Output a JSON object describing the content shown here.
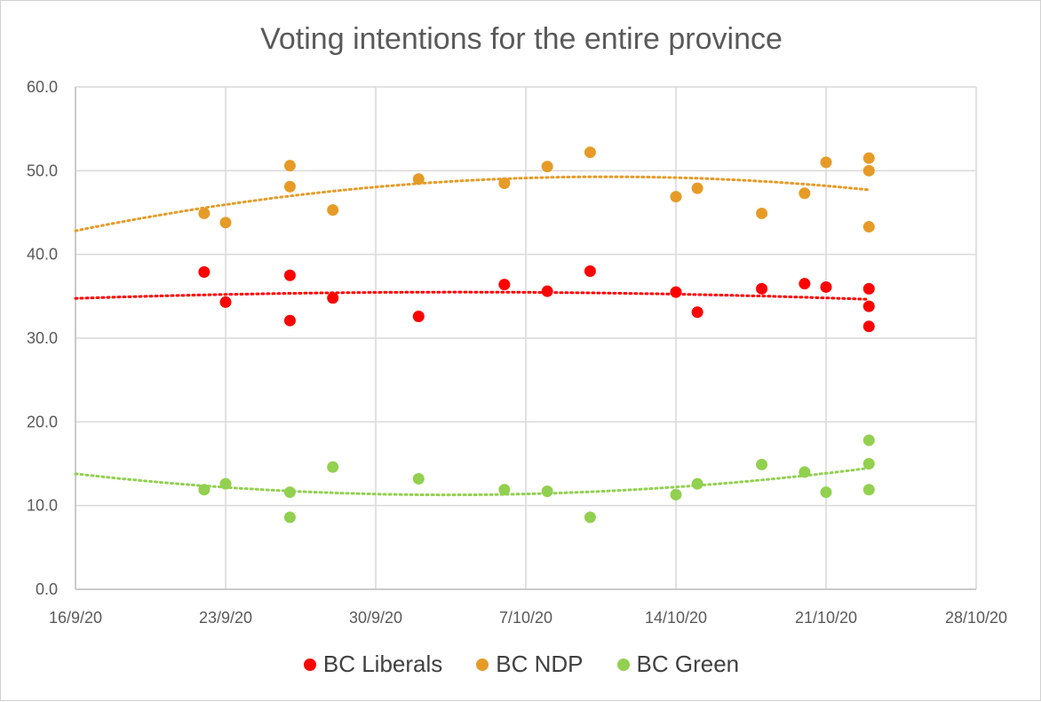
{
  "chart_data": {
    "type": "scatter",
    "title": "Voting intentions for the entire province",
    "x_axis": {
      "type": "date",
      "min": "2020-09-16",
      "max": "2020-10-28",
      "ticks": [
        "2020-09-16",
        "2020-09-23",
        "2020-09-30",
        "2020-10-07",
        "2020-10-14",
        "2020-10-21",
        "2020-10-28"
      ],
      "tick_labels": [
        "16/9/20",
        "23/9/20",
        "30/9/20",
        "7/10/20",
        "14/10/20",
        "21/10/20",
        "28/10/20"
      ]
    },
    "y_axis": {
      "min": 0,
      "max": 60,
      "ticks": [
        0,
        10,
        20,
        30,
        40,
        50,
        60
      ],
      "tick_labels": [
        "0.0",
        "10.0",
        "20.0",
        "30.0",
        "40.0",
        "50.0",
        "60.0"
      ]
    },
    "grid": {
      "vertical": true,
      "horizontal": true
    },
    "legend": {
      "position": "bottom"
    },
    "series": [
      {
        "name": "BC Liberals",
        "color": "#ff0000",
        "trendline": "dotted polynomial",
        "points": [
          {
            "x": "2020-09-22",
            "y": 37.9
          },
          {
            "x": "2020-09-23",
            "y": 34.3
          },
          {
            "x": "2020-09-26",
            "y": 37.5
          },
          {
            "x": "2020-09-26",
            "y": 32.1
          },
          {
            "x": "2020-09-28",
            "y": 34.8
          },
          {
            "x": "2020-10-02",
            "y": 32.6
          },
          {
            "x": "2020-10-06",
            "y": 36.4
          },
          {
            "x": "2020-10-08",
            "y": 35.6
          },
          {
            "x": "2020-10-10",
            "y": 38.0
          },
          {
            "x": "2020-10-14",
            "y": 35.5
          },
          {
            "x": "2020-10-15",
            "y": 33.1
          },
          {
            "x": "2020-10-18",
            "y": 35.9
          },
          {
            "x": "2020-10-20",
            "y": 36.5
          },
          {
            "x": "2020-10-21",
            "y": 36.1
          },
          {
            "x": "2020-10-23",
            "y": 35.9
          },
          {
            "x": "2020-10-23",
            "y": 33.8
          },
          {
            "x": "2020-10-23",
            "y": 31.4
          }
        ]
      },
      {
        "name": "BC NDP",
        "color": "#e69b27",
        "trendline": "dotted polynomial",
        "points": [
          {
            "x": "2020-09-22",
            "y": 44.9
          },
          {
            "x": "2020-09-23",
            "y": 43.8
          },
          {
            "x": "2020-09-26",
            "y": 50.6
          },
          {
            "x": "2020-09-26",
            "y": 48.1
          },
          {
            "x": "2020-09-28",
            "y": 45.3
          },
          {
            "x": "2020-10-02",
            "y": 49.0
          },
          {
            "x": "2020-10-06",
            "y": 48.5
          },
          {
            "x": "2020-10-08",
            "y": 50.5
          },
          {
            "x": "2020-10-10",
            "y": 52.2
          },
          {
            "x": "2020-10-14",
            "y": 46.9
          },
          {
            "x": "2020-10-15",
            "y": 47.9
          },
          {
            "x": "2020-10-18",
            "y": 44.9
          },
          {
            "x": "2020-10-20",
            "y": 47.3
          },
          {
            "x": "2020-10-21",
            "y": 51.0
          },
          {
            "x": "2020-10-23",
            "y": 51.5
          },
          {
            "x": "2020-10-23",
            "y": 50.0
          },
          {
            "x": "2020-10-23",
            "y": 43.3
          }
        ]
      },
      {
        "name": "BC Green",
        "color": "#92d050",
        "trendline": "dotted polynomial",
        "points": [
          {
            "x": "2020-09-22",
            "y": 11.9
          },
          {
            "x": "2020-09-23",
            "y": 12.6
          },
          {
            "x": "2020-09-26",
            "y": 11.6
          },
          {
            "x": "2020-09-26",
            "y": 8.6
          },
          {
            "x": "2020-09-28",
            "y": 14.6
          },
          {
            "x": "2020-10-02",
            "y": 13.2
          },
          {
            "x": "2020-10-06",
            "y": 11.9
          },
          {
            "x": "2020-10-08",
            "y": 11.7
          },
          {
            "x": "2020-10-10",
            "y": 8.6
          },
          {
            "x": "2020-10-14",
            "y": 11.3
          },
          {
            "x": "2020-10-15",
            "y": 12.6
          },
          {
            "x": "2020-10-18",
            "y": 14.9
          },
          {
            "x": "2020-10-20",
            "y": 14.0
          },
          {
            "x": "2020-10-21",
            "y": 11.6
          },
          {
            "x": "2020-10-23",
            "y": 17.8
          },
          {
            "x": "2020-10-23",
            "y": 15.0
          },
          {
            "x": "2020-10-23",
            "y": 11.9
          }
        ]
      }
    ]
  }
}
